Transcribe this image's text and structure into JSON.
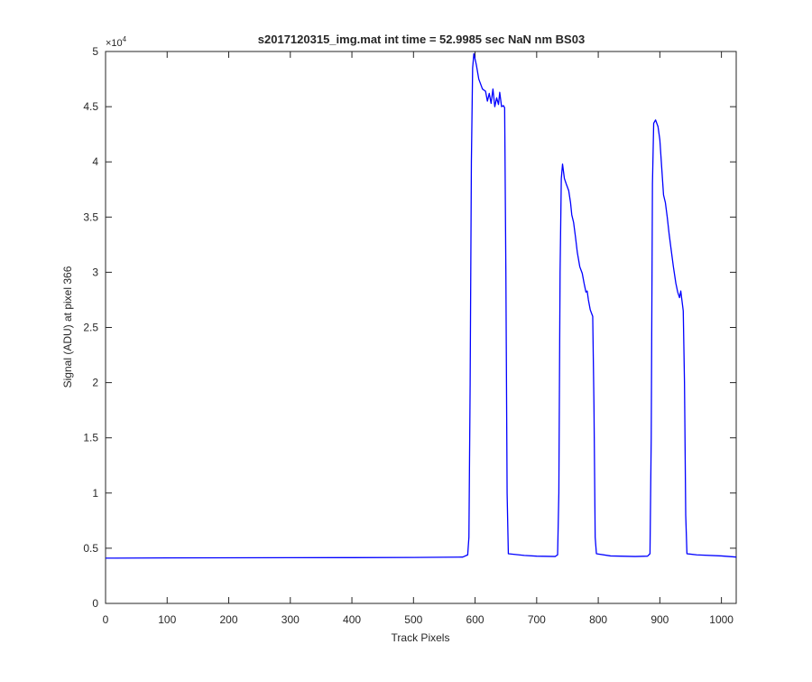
{
  "chart_data": {
    "type": "line",
    "title": "s2017120315_img.mat int time = 52.9985 sec  NaN nm BS03",
    "xlabel": "Track Pixels",
    "ylabel": "Signal (ADU) at pixel 366",
    "xlim": [
      0,
      1024
    ],
    "ylim": [
      0,
      50000
    ],
    "x_ticks": [
      0,
      100,
      200,
      300,
      400,
      500,
      600,
      700,
      800,
      900,
      1000
    ],
    "x_tick_labels": [
      "0",
      "100",
      "200",
      "300",
      "400",
      "500",
      "600",
      "700",
      "800",
      "900",
      "1000"
    ],
    "y_ticks": [
      0,
      5000,
      10000,
      15000,
      20000,
      25000,
      30000,
      35000,
      40000,
      45000,
      50000
    ],
    "y_tick_labels": [
      "0",
      "0.5",
      "1",
      "1.5",
      "2",
      "2.5",
      "3",
      "3.5",
      "4",
      "4.5",
      "5"
    ],
    "y_exponent_label": "×10",
    "y_exponent_power": "4",
    "grid": false,
    "box": true,
    "series": [
      {
        "color": "#0000ff",
        "points": [
          [
            0,
            4100
          ],
          [
            100,
            4120
          ],
          [
            200,
            4130
          ],
          [
            300,
            4140
          ],
          [
            400,
            4150
          ],
          [
            500,
            4160
          ],
          [
            580,
            4200
          ],
          [
            588,
            4400
          ],
          [
            590,
            6000
          ],
          [
            592,
            20000
          ],
          [
            594,
            40000
          ],
          [
            596,
            48500
          ],
          [
            598,
            49800
          ],
          [
            602,
            48800
          ],
          [
            606,
            47500
          ],
          [
            612,
            46600
          ],
          [
            617,
            46400
          ],
          [
            620,
            45500
          ],
          [
            623,
            46200
          ],
          [
            626,
            45300
          ],
          [
            629,
            46600
          ],
          [
            632,
            45000
          ],
          [
            635,
            45800
          ],
          [
            638,
            45200
          ],
          [
            640,
            46300
          ],
          [
            643,
            45000
          ],
          [
            646,
            45100
          ],
          [
            648,
            44900
          ],
          [
            650,
            30000
          ],
          [
            652,
            10000
          ],
          [
            654,
            4500
          ],
          [
            680,
            4350
          ],
          [
            700,
            4280
          ],
          [
            730,
            4250
          ],
          [
            734,
            4400
          ],
          [
            736,
            10000
          ],
          [
            738,
            30000
          ],
          [
            740,
            38500
          ],
          [
            742,
            39800
          ],
          [
            745,
            38500
          ],
          [
            748,
            38000
          ],
          [
            752,
            37400
          ],
          [
            755,
            36300
          ],
          [
            757,
            35200
          ],
          [
            760,
            34500
          ],
          [
            763,
            33200
          ],
          [
            766,
            31800
          ],
          [
            770,
            30500
          ],
          [
            774,
            29900
          ],
          [
            777,
            29000
          ],
          [
            780,
            28200
          ],
          [
            782,
            28300
          ],
          [
            784,
            27500
          ],
          [
            787,
            26600
          ],
          [
            789,
            26300
          ],
          [
            791,
            26000
          ],
          [
            793,
            18000
          ],
          [
            795,
            6000
          ],
          [
            797,
            4500
          ],
          [
            820,
            4300
          ],
          [
            860,
            4250
          ],
          [
            880,
            4280
          ],
          [
            884,
            4500
          ],
          [
            886,
            15000
          ],
          [
            888,
            38000
          ],
          [
            890,
            43500
          ],
          [
            893,
            43800
          ],
          [
            897,
            43200
          ],
          [
            900,
            42000
          ],
          [
            903,
            39500
          ],
          [
            906,
            37000
          ],
          [
            909,
            36300
          ],
          [
            912,
            35000
          ],
          [
            915,
            33500
          ],
          [
            918,
            32200
          ],
          [
            922,
            30500
          ],
          [
            926,
            29000
          ],
          [
            929,
            28200
          ],
          [
            932,
            27700
          ],
          [
            934,
            28300
          ],
          [
            936,
            27400
          ],
          [
            938,
            26500
          ],
          [
            940,
            20000
          ],
          [
            942,
            8000
          ],
          [
            944,
            4500
          ],
          [
            960,
            4400
          ],
          [
            1000,
            4300
          ],
          [
            1024,
            4200
          ]
        ]
      }
    ]
  }
}
